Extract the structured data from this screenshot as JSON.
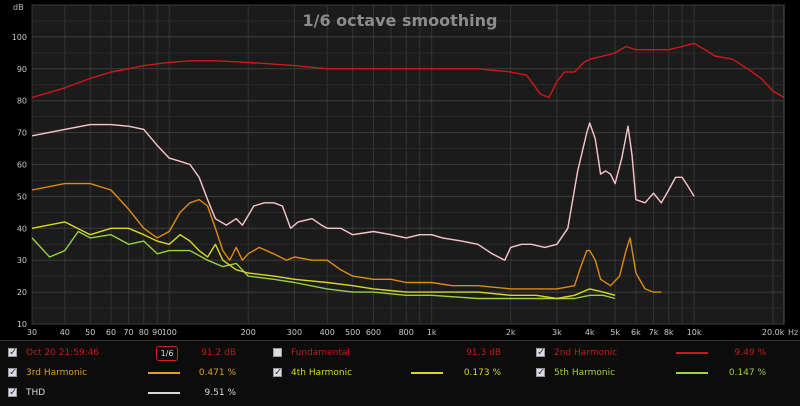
{
  "chart_data": {
    "type": "line",
    "title": "1/6 octave smoothing",
    "ylabel": "dB",
    "xunit": "Hz",
    "xscale": "log",
    "xlim": [
      30,
      22000
    ],
    "ylim": [
      10,
      110
    ],
    "grid": true,
    "yticks": [
      10,
      20,
      30,
      40,
      50,
      60,
      70,
      80,
      90,
      100
    ],
    "xticks": [
      {
        "v": 30,
        "t": "30"
      },
      {
        "v": 40,
        "t": "40"
      },
      {
        "v": 50,
        "t": "50"
      },
      {
        "v": 60,
        "t": "60"
      },
      {
        "v": 70,
        "t": "70"
      },
      {
        "v": 80,
        "t": "80"
      },
      {
        "v": 90,
        "t": "90"
      },
      {
        "v": 100,
        "t": "100"
      },
      {
        "v": 200,
        "t": "200"
      },
      {
        "v": 300,
        "t": "300"
      },
      {
        "v": 400,
        "t": "400"
      },
      {
        "v": 500,
        "t": "500"
      },
      {
        "v": 600,
        "t": "600"
      },
      {
        "v": 800,
        "t": "800"
      },
      {
        "v": 1000,
        "t": "1k"
      },
      {
        "v": 2000,
        "t": "2k"
      },
      {
        "v": 3000,
        "t": "3k"
      },
      {
        "v": 4000,
        "t": "4k"
      },
      {
        "v": 5000,
        "t": "5k"
      },
      {
        "v": 6000,
        "t": "6k"
      },
      {
        "v": 7000,
        "t": "7k"
      },
      {
        "v": 8000,
        "t": "8k"
      },
      {
        "v": 10000,
        "t": "10k"
      },
      {
        "v": 20000,
        "t": "20.0k"
      }
    ],
    "series": [
      {
        "name": "2nd Harmonic",
        "color": "#c81818",
        "points": [
          [
            30,
            69
          ],
          [
            40,
            71
          ],
          [
            50,
            72.5
          ],
          [
            60,
            72.5
          ],
          [
            70,
            72
          ],
          [
            80,
            71
          ],
          [
            90,
            66
          ],
          [
            100,
            62
          ],
          [
            110,
            61
          ],
          [
            120,
            60
          ],
          [
            130,
            56
          ],
          [
            140,
            49
          ],
          [
            150,
            43
          ],
          [
            165,
            41
          ],
          [
            180,
            43
          ],
          [
            190,
            41
          ],
          [
            200,
            44
          ],
          [
            210,
            47
          ],
          [
            230,
            48
          ],
          [
            250,
            48
          ],
          [
            270,
            47
          ],
          [
            290,
            40
          ],
          [
            310,
            42
          ],
          [
            350,
            43
          ],
          [
            380,
            41
          ],
          [
            400,
            40
          ],
          [
            450,
            40
          ],
          [
            500,
            38
          ],
          [
            600,
            39
          ],
          [
            700,
            38
          ],
          [
            800,
            37
          ],
          [
            900,
            38
          ],
          [
            1000,
            38
          ],
          [
            1100,
            37
          ],
          [
            1300,
            36
          ],
          [
            1500,
            35
          ],
          [
            1700,
            32
          ],
          [
            1900,
            30
          ],
          [
            2000,
            34
          ],
          [
            2200,
            35
          ],
          [
            2400,
            35
          ],
          [
            2700,
            34
          ],
          [
            3000,
            35
          ],
          [
            3300,
            40
          ],
          [
            3600,
            58
          ],
          [
            3900,
            70
          ],
          [
            4000,
            73
          ],
          [
            4200,
            68
          ],
          [
            4400,
            57
          ],
          [
            4600,
            58
          ],
          [
            4800,
            57
          ],
          [
            5000,
            54
          ],
          [
            5300,
            62
          ],
          [
            5600,
            72
          ],
          [
            5800,
            63
          ],
          [
            6000,
            49
          ],
          [
            6500,
            48
          ],
          [
            7000,
            51
          ],
          [
            7500,
            48
          ],
          [
            8000,
            52
          ],
          [
            8500,
            56
          ],
          [
            9000,
            56
          ],
          [
            9500,
            53
          ],
          [
            10000,
            50
          ]
        ]
      },
      {
        "name": "3rd Harmonic",
        "color": "#e08a10",
        "points": [
          [
            30,
            52
          ],
          [
            40,
            54
          ],
          [
            50,
            54
          ],
          [
            60,
            52
          ],
          [
            70,
            46
          ],
          [
            80,
            40
          ],
          [
            90,
            37
          ],
          [
            100,
            39
          ],
          [
            110,
            45
          ],
          [
            120,
            48
          ],
          [
            130,
            49
          ],
          [
            140,
            47
          ],
          [
            150,
            40
          ],
          [
            160,
            33
          ],
          [
            170,
            30
          ],
          [
            180,
            34
          ],
          [
            190,
            30
          ],
          [
            200,
            32
          ],
          [
            220,
            34
          ],
          [
            250,
            32
          ],
          [
            280,
            30
          ],
          [
            300,
            31
          ],
          [
            350,
            30
          ],
          [
            400,
            30
          ],
          [
            450,
            27
          ],
          [
            500,
            25
          ],
          [
            600,
            24
          ],
          [
            700,
            24
          ],
          [
            800,
            23
          ],
          [
            1000,
            23
          ],
          [
            1200,
            22
          ],
          [
            1500,
            22
          ],
          [
            2000,
            21
          ],
          [
            2500,
            21
          ],
          [
            3000,
            21
          ],
          [
            3500,
            22
          ],
          [
            3700,
            28
          ],
          [
            3900,
            33
          ],
          [
            4000,
            33
          ],
          [
            4200,
            30
          ],
          [
            4400,
            24
          ],
          [
            4800,
            22
          ],
          [
            5200,
            25
          ],
          [
            5500,
            33
          ],
          [
            5700,
            37
          ],
          [
            6000,
            26
          ],
          [
            6500,
            21
          ],
          [
            7000,
            20
          ],
          [
            7500,
            20
          ]
        ]
      },
      {
        "name": "4th Harmonic",
        "color": "#d8d820",
        "points": [
          [
            30,
            40
          ],
          [
            40,
            42
          ],
          [
            50,
            38
          ],
          [
            60,
            40
          ],
          [
            70,
            40
          ],
          [
            80,
            38
          ],
          [
            90,
            36
          ],
          [
            100,
            35
          ],
          [
            110,
            38
          ],
          [
            120,
            36
          ],
          [
            130,
            33
          ],
          [
            140,
            31
          ],
          [
            150,
            35
          ],
          [
            160,
            30
          ],
          [
            180,
            27
          ],
          [
            200,
            26
          ],
          [
            250,
            25
          ],
          [
            300,
            24
          ],
          [
            400,
            23
          ],
          [
            500,
            22
          ],
          [
            600,
            21
          ],
          [
            800,
            20
          ],
          [
            1000,
            20
          ],
          [
            1500,
            20
          ],
          [
            2000,
            19
          ],
          [
            2500,
            19
          ],
          [
            3000,
            18
          ],
          [
            3500,
            19
          ],
          [
            4000,
            21
          ],
          [
            4500,
            20
          ],
          [
            5000,
            19
          ]
        ]
      },
      {
        "name": "5th Harmonic",
        "color": "#98d040",
        "points": [
          [
            30,
            37
          ],
          [
            35,
            31
          ],
          [
            40,
            33
          ],
          [
            45,
            39
          ],
          [
            50,
            37
          ],
          [
            60,
            38
          ],
          [
            70,
            35
          ],
          [
            80,
            36
          ],
          [
            90,
            32
          ],
          [
            100,
            33
          ],
          [
            120,
            33
          ],
          [
            140,
            30
          ],
          [
            160,
            28
          ],
          [
            180,
            29
          ],
          [
            200,
            25
          ],
          [
            250,
            24
          ],
          [
            300,
            23
          ],
          [
            400,
            21
          ],
          [
            500,
            20
          ],
          [
            600,
            20
          ],
          [
            800,
            19
          ],
          [
            1000,
            19
          ],
          [
            1500,
            18
          ],
          [
            2000,
            18
          ],
          [
            2500,
            18
          ],
          [
            3000,
            18
          ],
          [
            3500,
            18
          ],
          [
            4000,
            19
          ],
          [
            4500,
            19
          ],
          [
            5000,
            18
          ]
        ]
      },
      {
        "name": "THD",
        "color": "#e8c8cc",
        "points": [
          [
            30,
            69
          ],
          [
            40,
            71
          ],
          [
            50,
            72.5
          ],
          [
            60,
            72.5
          ],
          [
            70,
            72
          ],
          [
            80,
            71
          ],
          [
            90,
            66
          ],
          [
            100,
            62
          ],
          [
            110,
            61
          ],
          [
            120,
            60
          ],
          [
            130,
            56
          ],
          [
            140,
            49
          ],
          [
            150,
            43
          ],
          [
            165,
            41
          ],
          [
            180,
            43
          ],
          [
            190,
            41
          ],
          [
            200,
            44
          ],
          [
            210,
            47
          ],
          [
            230,
            48
          ],
          [
            250,
            48
          ],
          [
            270,
            47
          ],
          [
            290,
            40
          ],
          [
            310,
            42
          ],
          [
            350,
            43
          ],
          [
            380,
            41
          ],
          [
            400,
            40
          ],
          [
            450,
            40
          ],
          [
            500,
            38
          ],
          [
            600,
            39
          ],
          [
            700,
            38
          ],
          [
            800,
            37
          ],
          [
            900,
            38
          ],
          [
            1000,
            38
          ],
          [
            1100,
            37
          ],
          [
            1300,
            36
          ],
          [
            1500,
            35
          ],
          [
            1700,
            32
          ],
          [
            1900,
            30
          ],
          [
            2000,
            34
          ],
          [
            2200,
            35
          ],
          [
            2400,
            35
          ],
          [
            2700,
            34
          ],
          [
            3000,
            35
          ],
          [
            3300,
            40
          ],
          [
            3600,
            58
          ],
          [
            3900,
            70
          ],
          [
            4000,
            73
          ],
          [
            4200,
            68
          ],
          [
            4400,
            57
          ],
          [
            4600,
            58
          ],
          [
            4800,
            57
          ],
          [
            5000,
            54
          ],
          [
            5300,
            62
          ],
          [
            5600,
            72
          ],
          [
            5800,
            63
          ],
          [
            6000,
            49
          ],
          [
            6500,
            48
          ],
          [
            7000,
            51
          ],
          [
            7500,
            48
          ],
          [
            8000,
            52
          ],
          [
            8500,
            56
          ],
          [
            9000,
            56
          ],
          [
            9500,
            53
          ],
          [
            10000,
            50
          ]
        ]
      },
      {
        "name": "Oct 20 21:59:46",
        "color": "#d01818",
        "points": [
          [
            30,
            81
          ],
          [
            40,
            84
          ],
          [
            50,
            87
          ],
          [
            60,
            89
          ],
          [
            70,
            90
          ],
          [
            80,
            91
          ],
          [
            100,
            92
          ],
          [
            120,
            92.5
          ],
          [
            150,
            92.5
          ],
          [
            200,
            92
          ],
          [
            300,
            91
          ],
          [
            400,
            90
          ],
          [
            500,
            90
          ],
          [
            700,
            90
          ],
          [
            1000,
            90
          ],
          [
            1500,
            90
          ],
          [
            2000,
            89
          ],
          [
            2300,
            88
          ],
          [
            2600,
            82
          ],
          [
            2800,
            81
          ],
          [
            3000,
            86
          ],
          [
            3200,
            89
          ],
          [
            3500,
            89
          ],
          [
            3800,
            92
          ],
          [
            4000,
            93
          ],
          [
            4500,
            94
          ],
          [
            5000,
            95
          ],
          [
            5500,
            97
          ],
          [
            6000,
            96
          ],
          [
            7000,
            96
          ],
          [
            8000,
            96
          ],
          [
            9000,
            97
          ],
          [
            10000,
            98
          ],
          [
            11000,
            96
          ],
          [
            12000,
            94
          ],
          [
            14000,
            93
          ],
          [
            16000,
            90
          ],
          [
            18000,
            87
          ],
          [
            20000,
            83
          ],
          [
            22000,
            81
          ]
        ]
      }
    ]
  },
  "legend": {
    "smoothing": "1/6",
    "items": [
      {
        "label": "Oct 20 21:59:46",
        "value": "91.2 dB",
        "color": "#c81818",
        "checked": true
      },
      {
        "label": "Fundamental",
        "value": "91.3 dB",
        "color": "#c81818",
        "checked": false
      },
      {
        "label": "2nd Harmonic",
        "value": "9.49 %",
        "color": "#c81818",
        "checked": true
      },
      {
        "label": "3rd Harmonic",
        "value": "0.471 %",
        "color": "#e0a020",
        "checked": true
      },
      {
        "label": "4th Harmonic",
        "value": "0.173 %",
        "color": "#d8d820",
        "checked": true
      },
      {
        "label": "5th Harmonic",
        "value": "0.147 %",
        "color": "#a0d040",
        "checked": true
      },
      {
        "label": "THD",
        "value": "9.51 %",
        "color": "#d8d8d8",
        "checked": true
      }
    ]
  }
}
